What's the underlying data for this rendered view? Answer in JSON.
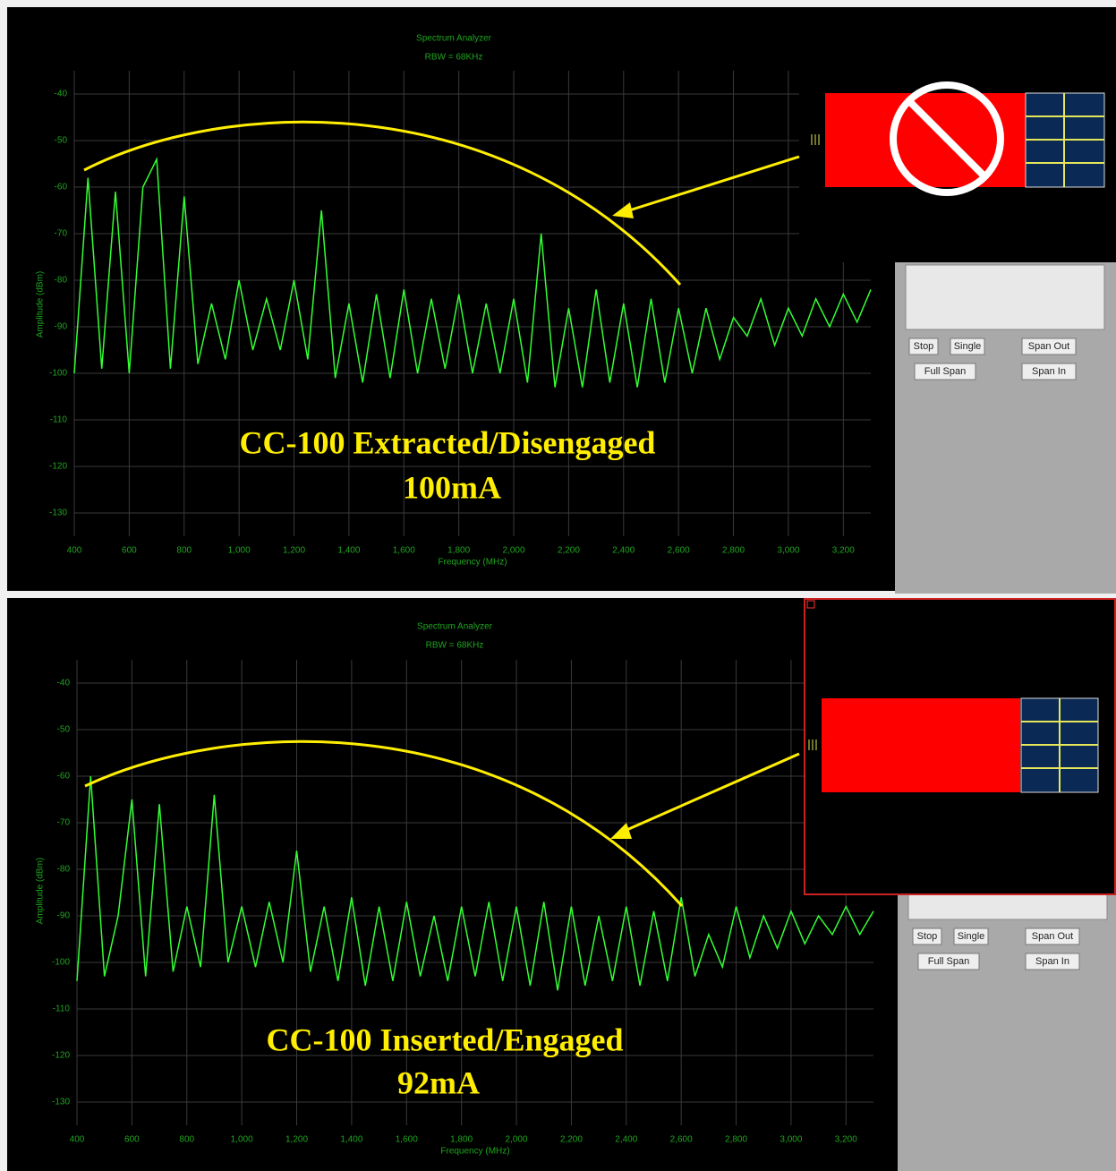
{
  "chart_data": [
    {
      "type": "line",
      "title": "Spectrum Analyzer",
      "subtitle": "RBW = 68KHz",
      "x_label": "Frequency (MHz)",
      "y_label": "Amplitude (dBm)",
      "annotations": [
        "CC-100 Extracted/Disengaged",
        "100mA"
      ],
      "x": [
        400,
        450,
        500,
        550,
        600,
        650,
        700,
        750,
        800,
        850,
        900,
        950,
        1000,
        1050,
        1100,
        1150,
        1200,
        1250,
        1300,
        1350,
        1400,
        1450,
        1500,
        1550,
        1600,
        1650,
        1700,
        1750,
        1800,
        1850,
        1900,
        1950,
        2000,
        2050,
        2100,
        2150,
        2200,
        2250,
        2300,
        2350,
        2400,
        2450,
        2500,
        2550,
        2600,
        2650,
        2700,
        2750,
        2800,
        2850,
        2900,
        2950,
        3000,
        3050,
        3100,
        3150,
        3200,
        3250,
        3300
      ],
      "values": [
        -100,
        -58,
        -99,
        -61,
        -100,
        -60,
        -54,
        -99,
        -62,
        -98,
        -85,
        -97,
        -80,
        -95,
        -84,
        -95,
        -80,
        -97,
        -65,
        -101,
        -85,
        -102,
        -83,
        -101,
        -82,
        -100,
        -84,
        -99,
        -83,
        -100,
        -85,
        -100,
        -84,
        -102,
        -70,
        -103,
        -86,
        -103,
        -82,
        -102,
        -85,
        -103,
        -84,
        -102,
        -86,
        -100,
        -86,
        -97,
        -88,
        -92,
        -84,
        -94,
        -86,
        -92,
        -84,
        -90,
        -83,
        -89,
        -82
      ],
      "color": "#33ff33",
      "xlim": [
        400,
        3300
      ],
      "ylim": [
        -135,
        -35
      ],
      "xticks": [
        400,
        600,
        800,
        {
          "value": 1000,
          "label": "1,000"
        },
        {
          "value": 1200,
          "label": "1,200"
        },
        {
          "value": 1400,
          "label": "1,400"
        },
        {
          "value": 1600,
          "label": "1,600"
        },
        {
          "value": 1800,
          "label": "1,800"
        },
        {
          "value": 2000,
          "label": "2,000"
        },
        {
          "value": 2200,
          "label": "2,200"
        },
        {
          "value": 2400,
          "label": "2,400"
        },
        {
          "value": 2600,
          "label": "2,600"
        },
        {
          "value": 2800,
          "label": "2,800"
        },
        {
          "value": 3000,
          "label": "3,000"
        },
        {
          "value": 3200,
          "label": "3,200"
        }
      ],
      "yticks": [
        -40,
        -50,
        -60,
        -70,
        -80,
        -90,
        -100,
        -110,
        -120,
        -130
      ],
      "grid": true
    },
    {
      "type": "line",
      "title": "Spectrum Analyzer",
      "subtitle": "RBW = 68KHz",
      "x_label": "Frequency (MHz)",
      "y_label": "Amplitude (dBm)",
      "annotations": [
        "CC-100 Inserted/Engaged",
        "92mA"
      ],
      "x": [
        400,
        450,
        500,
        550,
        600,
        650,
        700,
        750,
        800,
        850,
        900,
        950,
        1000,
        1050,
        1100,
        1150,
        1200,
        1250,
        1300,
        1350,
        1400,
        1450,
        1500,
        1550,
        1600,
        1650,
        1700,
        1750,
        1800,
        1850,
        1900,
        1950,
        2000,
        2050,
        2100,
        2150,
        2200,
        2250,
        2300,
        2350,
        2400,
        2450,
        2500,
        2550,
        2600,
        2650,
        2700,
        2750,
        2800,
        2850,
        2900,
        2950,
        3000,
        3050,
        3100,
        3150,
        3200,
        3250,
        3300
      ],
      "values": [
        -104,
        -60,
        -103,
        -90,
        -65,
        -103,
        -66,
        -102,
        -88,
        -101,
        -64,
        -100,
        -88,
        -101,
        -87,
        -100,
        -76,
        -102,
        -88,
        -104,
        -86,
        -105,
        -88,
        -104,
        -87,
        -103,
        -90,
        -104,
        -88,
        -103,
        -87,
        -104,
        -88,
        -105,
        -87,
        -106,
        -88,
        -105,
        -90,
        -104,
        -88,
        -105,
        -89,
        -104,
        -86,
        -103,
        -94,
        -101,
        -88,
        -99,
        -90,
        -97,
        -89,
        -96,
        -90,
        -94,
        -88,
        -94,
        -89
      ],
      "color": "#33ff33",
      "xlim": [
        400,
        3300
      ],
      "ylim": [
        -135,
        -35
      ],
      "xticks": [
        400,
        600,
        800,
        {
          "value": 1000,
          "label": "1,000"
        },
        {
          "value": 1200,
          "label": "1,200"
        },
        {
          "value": 1400,
          "label": "1,400"
        },
        {
          "value": 1600,
          "label": "1,600"
        },
        {
          "value": 1800,
          "label": "1,800"
        },
        {
          "value": 2000,
          "label": "2,000"
        },
        {
          "value": 2200,
          "label": "2,200"
        },
        {
          "value": 2400,
          "label": "2,400"
        },
        {
          "value": 2600,
          "label": "2,600"
        },
        {
          "value": 2800,
          "label": "2,800"
        },
        {
          "value": 3000,
          "label": "3,000"
        },
        {
          "value": 3200,
          "label": "3,200"
        }
      ],
      "yticks": [
        -40,
        -50,
        -60,
        -70,
        -80,
        -90,
        -100,
        -110,
        -120,
        -130
      ],
      "grid": true
    }
  ],
  "controls": [
    [
      "Stop",
      "Single",
      "Span Out",
      "Full Span",
      "Span In"
    ],
    [
      "Stop",
      "Single",
      "Span Out",
      "Full Span",
      "Span In"
    ]
  ]
}
